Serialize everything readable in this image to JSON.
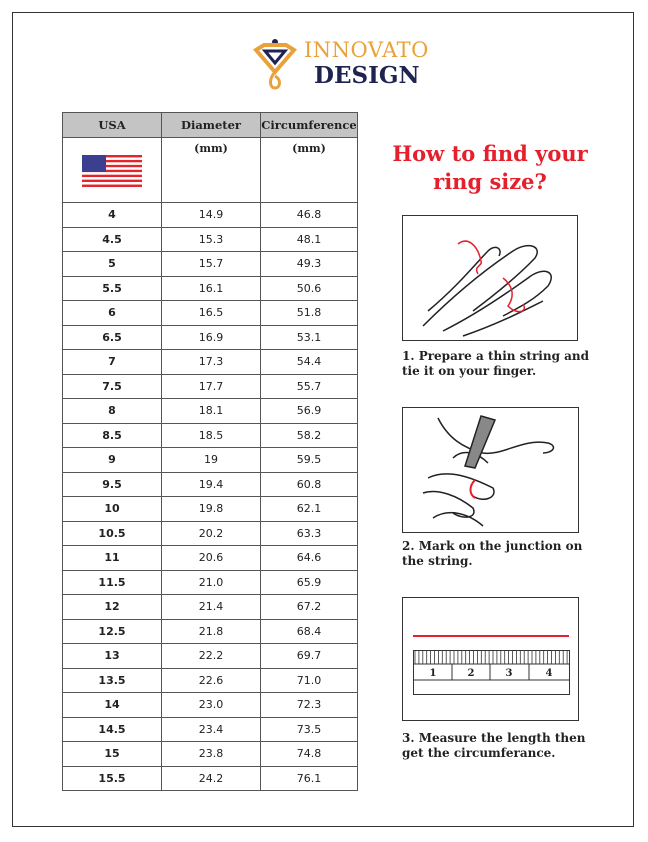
{
  "logo": {
    "line1": "INNOVATO",
    "line2": "DESIGN",
    "colors": {
      "gold": "#e9a23b",
      "navy": "#1f2350"
    }
  },
  "table": {
    "headers": [
      "USA",
      "Diameter",
      "Circumference"
    ],
    "units": [
      "",
      "(mm)",
      "(mm)"
    ],
    "flag_icon": "us-flag-icon",
    "rows": [
      [
        "4",
        "14.9",
        "46.8"
      ],
      [
        "4.5",
        "15.3",
        "48.1"
      ],
      [
        "5",
        "15.7",
        "49.3"
      ],
      [
        "5.5",
        "16.1",
        "50.6"
      ],
      [
        "6",
        "16.5",
        "51.8"
      ],
      [
        "6.5",
        "16.9",
        "53.1"
      ],
      [
        "7",
        "17.3",
        "54.4"
      ],
      [
        "7.5",
        "17.7",
        "55.7"
      ],
      [
        "8",
        "18.1",
        "56.9"
      ],
      [
        "8.5",
        "18.5",
        "58.2"
      ],
      [
        "9",
        "19",
        "59.5"
      ],
      [
        "9.5",
        "19.4",
        "60.8"
      ],
      [
        "10",
        "19.8",
        "62.1"
      ],
      [
        "10.5",
        "20.2",
        "63.3"
      ],
      [
        "11",
        "20.6",
        "64.6"
      ],
      [
        "11.5",
        "21.0",
        "65.9"
      ],
      [
        "12",
        "21.4",
        "67.2"
      ],
      [
        "12.5",
        "21.8",
        "68.4"
      ],
      [
        "13",
        "22.2",
        "69.7"
      ],
      [
        "13.5",
        "22.6",
        "71.0"
      ],
      [
        "14",
        "23.0",
        "72.3"
      ],
      [
        "14.5",
        "23.4",
        "73.5"
      ],
      [
        "15",
        "23.8",
        "74.8"
      ],
      [
        "15.5",
        "24.2",
        "76.1"
      ]
    ]
  },
  "guide": {
    "title_line1": "How to find your",
    "title_line2": "ring size?",
    "accent": "#e51f2b",
    "steps": [
      {
        "caption": "1. Prepare a thin string and tie it on your finger."
      },
      {
        "caption": "2. Mark on the junction on the string."
      },
      {
        "caption": "3. Measure the length then get the circumferance."
      }
    ],
    "ruler_labels": [
      "1",
      "2",
      "3",
      "4"
    ]
  }
}
